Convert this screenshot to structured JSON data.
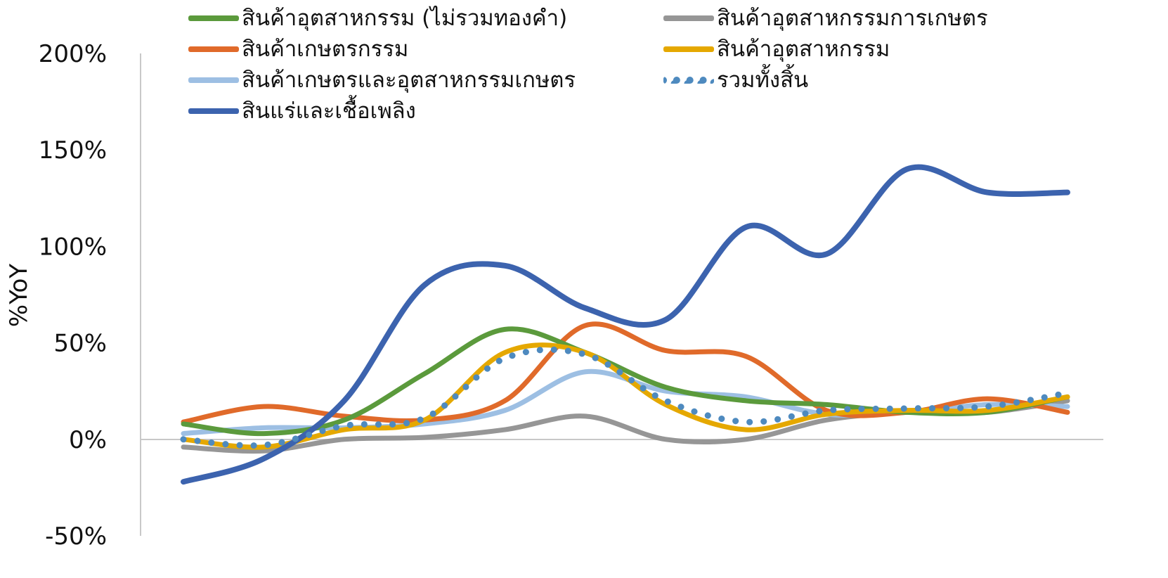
{
  "chart_data": {
    "type": "line",
    "ylabel": "%YoY",
    "ylim": [
      -50,
      200
    ],
    "yticks": [
      "200%",
      "150%",
      "100%",
      "50%",
      "0%",
      "-50%"
    ],
    "ytick_values": [
      200,
      150,
      100,
      50,
      0,
      -50
    ],
    "x": [
      1,
      2,
      3,
      4,
      5,
      6,
      7,
      8,
      9,
      10,
      11,
      12
    ],
    "series": [
      {
        "name": "สินค้าอุตสาหกรรม (ไม่รวมทองคำ)",
        "color": "#5B9A3C",
        "style": "solid",
        "values": [
          8,
          3,
          10,
          34,
          57,
          45,
          27,
          20,
          18,
          14,
          14,
          22
        ]
      },
      {
        "name": "สินค้าอุตสาหกรรมการเกษตร",
        "color": "#969696",
        "style": "solid",
        "values": [
          -4,
          -6,
          0,
          1,
          5,
          12,
          0,
          0,
          10,
          14,
          14,
          20
        ]
      },
      {
        "name": "สินค้าเกษตรกรรม",
        "color": "#E06A2A",
        "style": "solid",
        "values": [
          9,
          17,
          12,
          10,
          20,
          59,
          46,
          43,
          15,
          14,
          21,
          14
        ]
      },
      {
        "name": "สินค้าอุตสาหกรรม",
        "color": "#E5A800",
        "style": "solid",
        "values": [
          0,
          -4,
          5,
          10,
          45,
          45,
          18,
          5,
          13,
          15,
          15,
          22
        ]
      },
      {
        "name": "สินค้าเกษตรและอุตสาหกรรมเกษตร",
        "color": "#9DBFE3",
        "style": "solid",
        "values": [
          3,
          6,
          6,
          8,
          15,
          35,
          25,
          22,
          13,
          14,
          18,
          17
        ]
      },
      {
        "name": "รวมทั้งสิ้น",
        "color": "#4E8ABF",
        "style": "dotted",
        "values": [
          0,
          -3,
          7,
          11,
          42,
          44,
          20,
          9,
          15,
          16,
          17,
          24
        ]
      },
      {
        "name": "สินแร่และเชื้อเพลิง",
        "color": "#3C63AE",
        "style": "solid",
        "values": [
          -22,
          -10,
          20,
          80,
          90,
          68,
          62,
          110,
          96,
          140,
          128,
          128
        ]
      }
    ]
  }
}
